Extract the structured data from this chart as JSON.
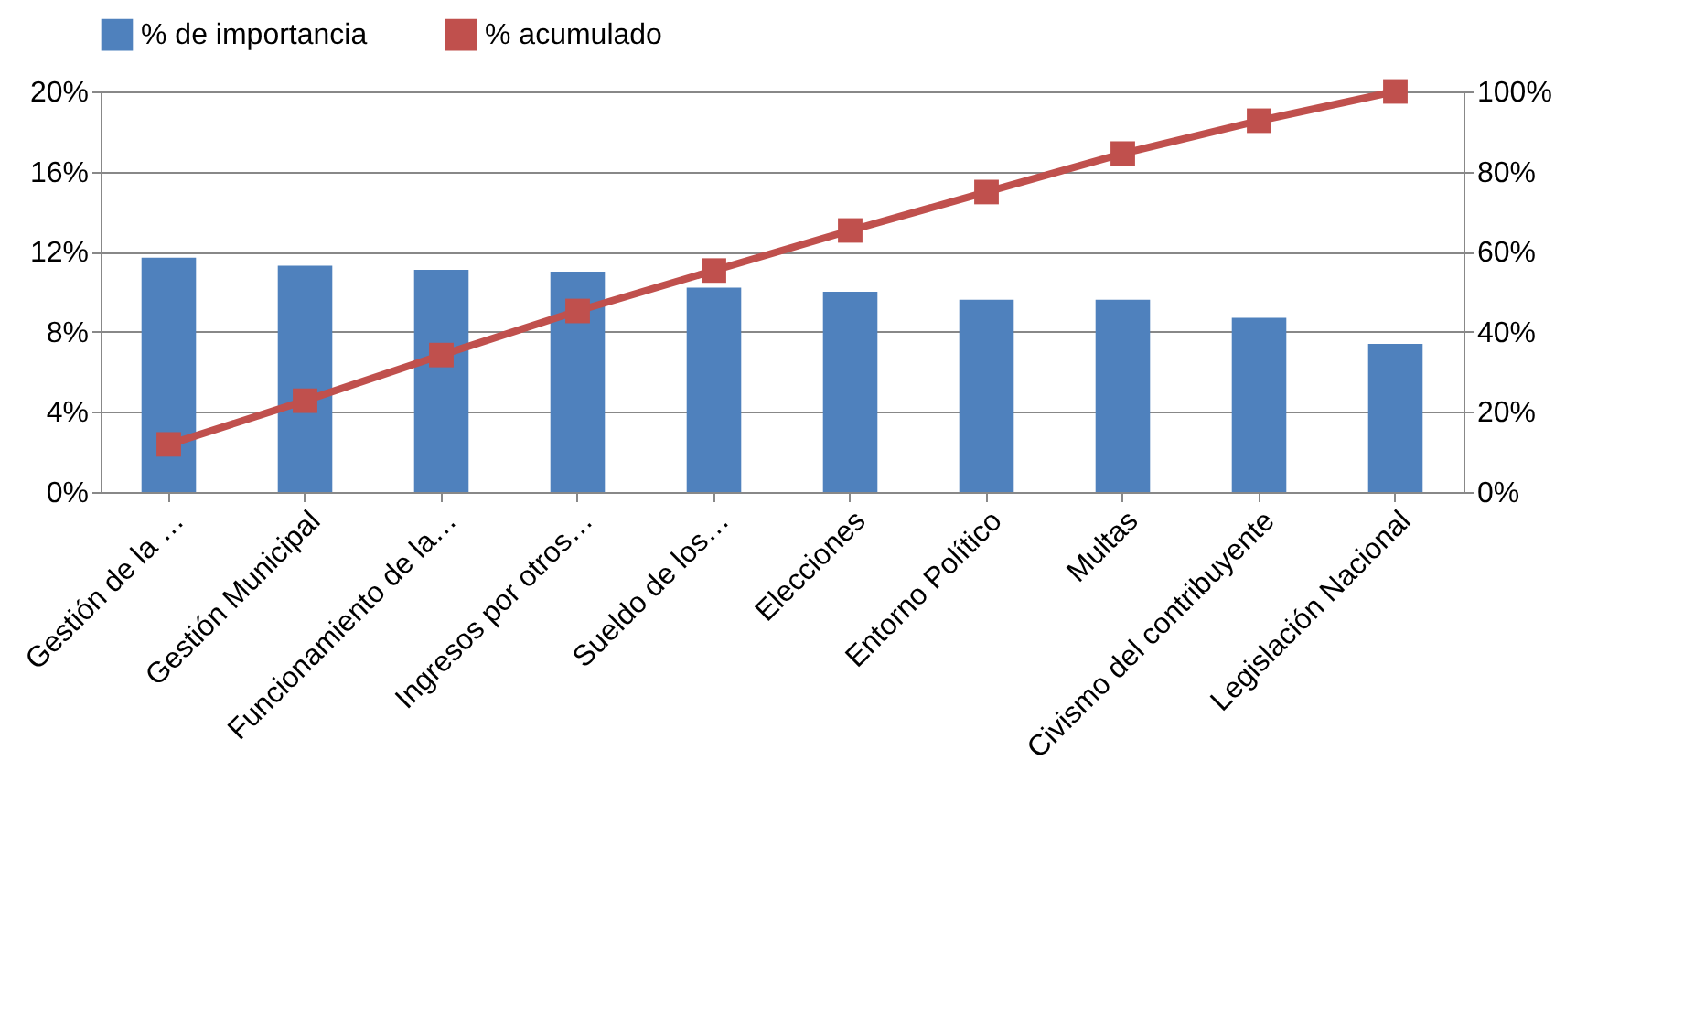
{
  "chart_data": {
    "type": "bar",
    "categories": [
      "Gestión de la …",
      "Gestión Municipal",
      "Funcionamiento de la…",
      "Ingresos por otros…",
      "Sueldo de los…",
      "Elecciones",
      "Entorno Político",
      "Multas",
      "Civismo del contribuyente",
      "Legislación Nacional"
    ],
    "series": [
      {
        "name": "% de importancia",
        "color": "#4f81bd",
        "values": [
          11.7,
          11.3,
          11.1,
          11.0,
          10.2,
          10.0,
          9.6,
          9.6,
          8.7,
          7.4
        ]
      },
      {
        "name": "% acumulado",
        "type": "line",
        "axis": "y2",
        "color": "#c0504d",
        "marker": "square",
        "values": [
          11.9,
          22.8,
          34.2,
          45.2,
          55.3,
          65.3,
          74.9,
          84.5,
          92.7,
          100
        ]
      }
    ],
    "ylim": [
      0,
      20
    ],
    "yticks": [
      {
        "value": 0,
        "label": "0%"
      },
      {
        "value": 4,
        "label": "4%"
      },
      {
        "value": 8,
        "label": "8%"
      },
      {
        "value": 12,
        "label": "12%"
      },
      {
        "value": 16,
        "label": "16%"
      },
      {
        "value": 20,
        "label": "20%"
      }
    ],
    "y2lim": [
      0,
      100
    ],
    "y2ticks": [
      {
        "value": 0,
        "label": "0%"
      },
      {
        "value": 20,
        "label": "20%"
      },
      {
        "value": 40,
        "label": "40%"
      },
      {
        "value": 60,
        "label": "60%"
      },
      {
        "value": 80,
        "label": "80%"
      },
      {
        "value": 100,
        "label": "100%"
      }
    ],
    "grid": "y",
    "legend": "top"
  }
}
